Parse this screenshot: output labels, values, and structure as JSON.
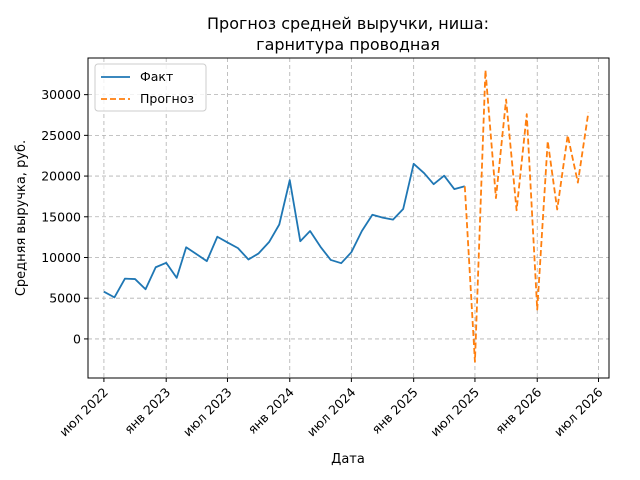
{
  "chart_data": {
    "type": "line",
    "title_lines": [
      "Прогноз средней выручки, ниша:",
      "гарнитура проводная"
    ],
    "xlabel": "Дата",
    "ylabel": "Средняя выручка, руб.",
    "xlim": [
      "2022-05-15",
      "2026-08-01"
    ],
    "ylim": [
      -4800,
      34500
    ],
    "x_ticks": [
      {
        "date": "2022-07-01",
        "label": "июл 2022"
      },
      {
        "date": "2023-01-01",
        "label": "янв 2023"
      },
      {
        "date": "2023-07-01",
        "label": "июл 2023"
      },
      {
        "date": "2024-01-01",
        "label": "янв 2024"
      },
      {
        "date": "2024-07-01",
        "label": "июл 2024"
      },
      {
        "date": "2025-01-01",
        "label": "янв 2025"
      },
      {
        "date": "2025-07-01",
        "label": "июл 2025"
      },
      {
        "date": "2026-01-01",
        "label": "янв 2026"
      },
      {
        "date": "2026-07-01",
        "label": "июл 2026"
      }
    ],
    "y_ticks": [
      0,
      5000,
      10000,
      15000,
      20000,
      25000,
      30000
    ],
    "grid": true,
    "legend_position": "top-left",
    "series": [
      {
        "name": "Факт",
        "color": "#1f77b4",
        "style": "solid",
        "points": [
          [
            "2022-07-01",
            5800
          ],
          [
            "2022-08-01",
            5100
          ],
          [
            "2022-09-01",
            7400
          ],
          [
            "2022-10-01",
            7350
          ],
          [
            "2022-11-01",
            6100
          ],
          [
            "2022-12-01",
            8800
          ],
          [
            "2023-01-01",
            9350
          ],
          [
            "2023-02-01",
            7500
          ],
          [
            "2023-03-01",
            11250
          ],
          [
            "2023-04-01",
            10400
          ],
          [
            "2023-05-01",
            9550
          ],
          [
            "2023-06-01",
            12550
          ],
          [
            "2023-07-01",
            11850
          ],
          [
            "2023-08-01",
            11150
          ],
          [
            "2023-09-01",
            9750
          ],
          [
            "2023-10-01",
            10500
          ],
          [
            "2023-11-01",
            11900
          ],
          [
            "2023-12-01",
            14050
          ],
          [
            "2024-01-01",
            19500
          ],
          [
            "2024-02-01",
            12000
          ],
          [
            "2024-03-01",
            13250
          ],
          [
            "2024-04-01",
            11300
          ],
          [
            "2024-05-01",
            9700
          ],
          [
            "2024-06-01",
            9300
          ],
          [
            "2024-07-01",
            10650
          ],
          [
            "2024-08-01",
            13250
          ],
          [
            "2024-09-01",
            15250
          ],
          [
            "2024-10-01",
            14900
          ],
          [
            "2024-11-01",
            14650
          ],
          [
            "2024-12-01",
            15950
          ],
          [
            "2025-01-01",
            21500
          ],
          [
            "2025-02-01",
            20350
          ],
          [
            "2025-03-01",
            19000
          ],
          [
            "2025-04-01",
            20050
          ],
          [
            "2025-05-01",
            18400
          ],
          [
            "2025-06-01",
            18750
          ]
        ]
      },
      {
        "name": "Прогноз",
        "color": "#ff7f0e",
        "style": "dashed",
        "points": [
          [
            "2025-06-01",
            18750
          ],
          [
            "2025-07-01",
            -2800
          ],
          [
            "2025-08-01",
            33000
          ],
          [
            "2025-09-01",
            17300
          ],
          [
            "2025-10-01",
            29400
          ],
          [
            "2025-11-01",
            15800
          ],
          [
            "2025-12-01",
            27600
          ],
          [
            "2026-01-01",
            3600
          ],
          [
            "2026-02-01",
            24300
          ],
          [
            "2026-03-01",
            15900
          ],
          [
            "2026-04-01",
            25000
          ],
          [
            "2026-05-01",
            19200
          ],
          [
            "2026-06-01",
            27800
          ]
        ]
      }
    ]
  }
}
